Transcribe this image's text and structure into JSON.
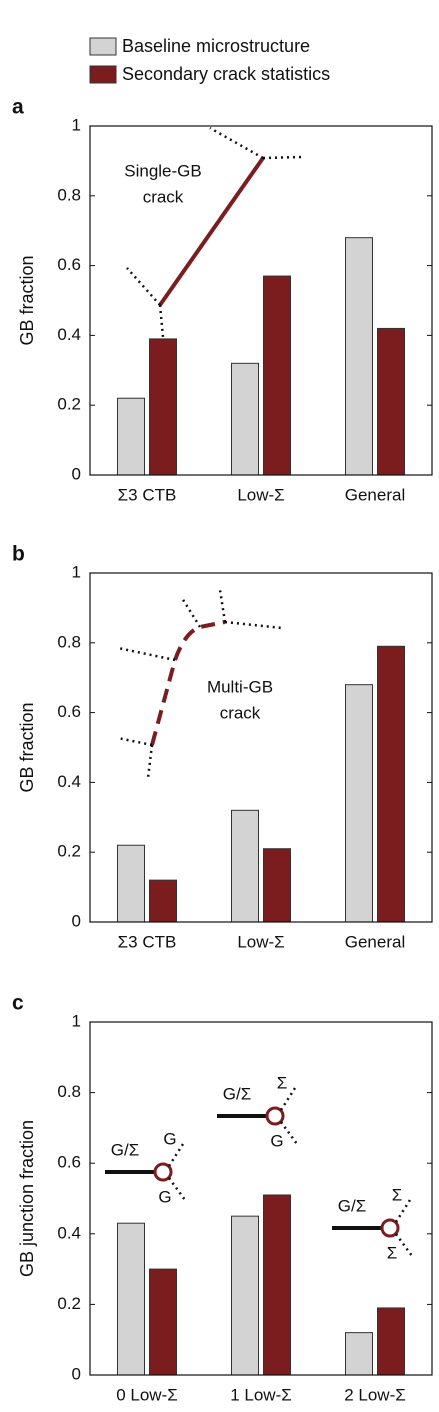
{
  "chart_data": [
    {
      "type": "bar",
      "panel_label": "a",
      "ylabel": "GB fraction",
      "annotation": [
        "Single-GB",
        "crack"
      ],
      "categories": [
        "Σ3 CTB",
        "Low-Σ",
        "General"
      ],
      "series": [
        {
          "name": "Baseline microstructure",
          "color": "#d3d3d3",
          "values": [
            0.22,
            0.32,
            0.68
          ]
        },
        {
          "name": "Secondary crack statistics",
          "color": "#7b1c1f",
          "values": [
            0.39,
            0.57,
            0.42
          ]
        }
      ],
      "ylim": [
        0,
        1
      ],
      "yticks": [
        0,
        0.2,
        0.4,
        0.6,
        0.8,
        1
      ]
    },
    {
      "type": "bar",
      "panel_label": "b",
      "ylabel": "GB fraction",
      "annotation": [
        "Multi-GB",
        "crack"
      ],
      "categories": [
        "Σ3 CTB",
        "Low-Σ",
        "General"
      ],
      "series": [
        {
          "name": "Baseline microstructure",
          "color": "#d3d3d3",
          "values": [
            0.22,
            0.32,
            0.68
          ]
        },
        {
          "name": "Secondary crack statistics",
          "color": "#7b1c1f",
          "values": [
            0.12,
            0.21,
            0.79
          ]
        }
      ],
      "ylim": [
        0,
        1
      ],
      "yticks": [
        0,
        0.2,
        0.4,
        0.6,
        0.8,
        1
      ]
    },
    {
      "type": "bar",
      "panel_label": "c",
      "ylabel": "GB junction fraction",
      "junction_labels": [
        [
          "G/Σ",
          "G",
          "G"
        ],
        [
          "G/Σ",
          "Σ",
          "G"
        ],
        [
          "G/Σ",
          "Σ",
          "Σ"
        ]
      ],
      "categories": [
        "0 Low-Σ",
        "1 Low-Σ",
        "2 Low-Σ"
      ],
      "series": [
        {
          "name": "Baseline microstructure",
          "color": "#d3d3d3",
          "values": [
            0.43,
            0.45,
            0.12
          ]
        },
        {
          "name": "Secondary crack statistics",
          "color": "#7b1c1f",
          "values": [
            0.3,
            0.51,
            0.19
          ]
        }
      ],
      "ylim": [
        0,
        1
      ],
      "yticks": [
        0,
        0.2,
        0.4,
        0.6,
        0.8,
        1
      ]
    }
  ]
}
